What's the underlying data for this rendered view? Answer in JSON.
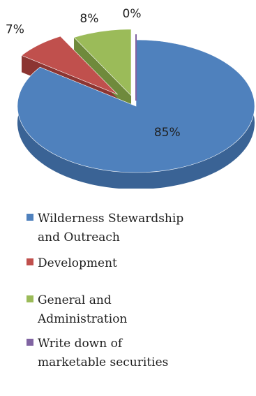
{
  "chart_data": {
    "type": "pie",
    "title": "",
    "slices": [
      {
        "label": "Wilderness Stewardship and Outreach",
        "line1": "Wilderness Stewardship",
        "line2": "and Outreach",
        "value": 85,
        "value_label": "85%",
        "color": "#4f81bd",
        "side": "#3a6395"
      },
      {
        "label": "Development",
        "line1": "Development",
        "line2": "",
        "value": 7,
        "value_label": "7%",
        "color": "#c0504d",
        "side": "#8c3532"
      },
      {
        "label": "General and Administration",
        "line1": "General and",
        "line2": "Administration",
        "value": 8,
        "value_label": "8%",
        "color": "#9bbb59",
        "side": "#6f8a3c"
      },
      {
        "label": "Write down of marketable securities",
        "line1": "Write down of",
        "line2": "marketable securities",
        "value": 0,
        "value_label": "0%",
        "color": "#8064a2",
        "side": "#5c4876"
      }
    ],
    "legend_position": "bottom"
  }
}
